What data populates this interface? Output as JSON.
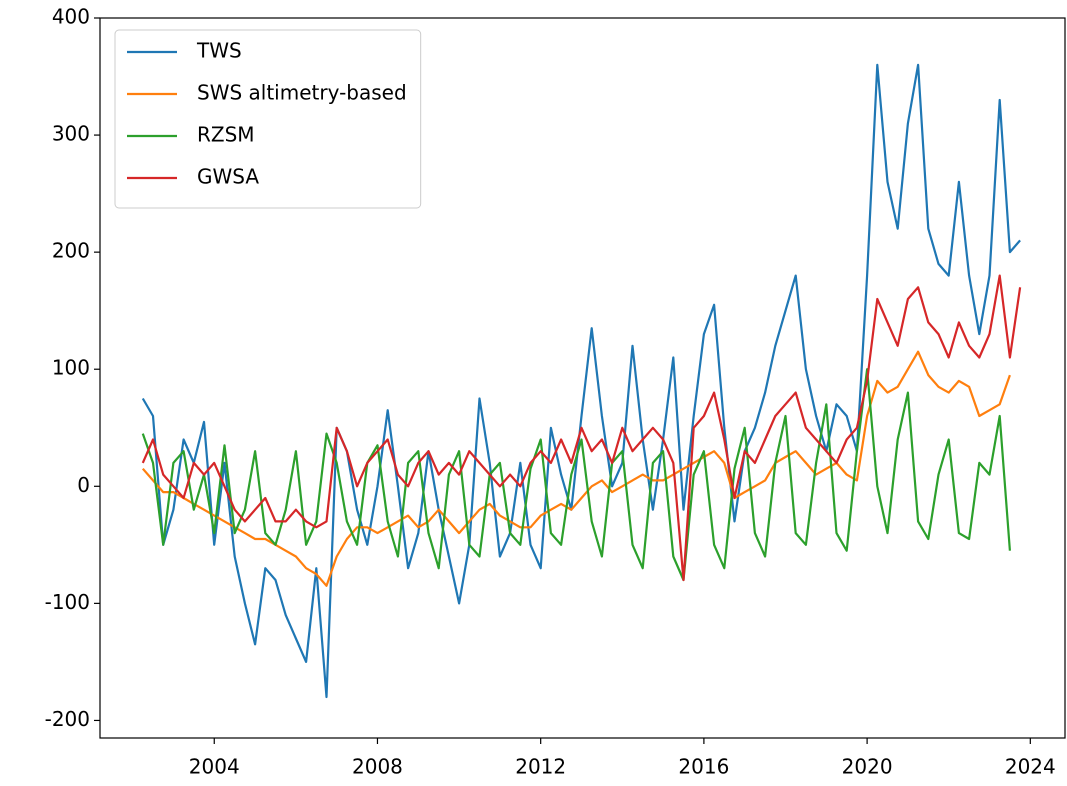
{
  "chart_data": {
    "type": "line",
    "x": [
      2002.25,
      2002.5,
      2002.75,
      2003,
      2003.25,
      2003.5,
      2003.75,
      2004,
      2004.25,
      2004.5,
      2004.75,
      2005,
      2005.25,
      2005.5,
      2005.75,
      2006,
      2006.25,
      2006.5,
      2006.75,
      2007,
      2007.25,
      2007.5,
      2007.75,
      2008,
      2008.25,
      2008.5,
      2008.75,
      2009,
      2009.25,
      2009.5,
      2009.75,
      2010,
      2010.25,
      2010.5,
      2010.75,
      2011,
      2011.25,
      2011.5,
      2011.75,
      2012,
      2012.25,
      2012.5,
      2012.75,
      2013,
      2013.25,
      2013.5,
      2013.75,
      2014,
      2014.25,
      2014.5,
      2014.75,
      2015,
      2015.25,
      2015.5,
      2015.75,
      2016,
      2016.25,
      2016.5,
      2016.75,
      2017,
      2017.25,
      2017.5,
      2017.75,
      2018,
      2018.25,
      2018.5,
      2018.75,
      2019,
      2019.25,
      2019.5,
      2019.75,
      2020,
      2020.25,
      2020.5,
      2020.75,
      2021,
      2021.25,
      2021.5,
      2021.75,
      2022,
      2022.25,
      2022.5,
      2022.75,
      2023,
      2023.25,
      2023.5,
      2023.75
    ],
    "series": [
      {
        "name": "TWS",
        "color": "#1f77b4",
        "values": [
          75,
          60,
          -50,
          -20,
          40,
          20,
          55,
          -50,
          20,
          -60,
          -100,
          -135,
          -70,
          -80,
          -110,
          -130,
          -150,
          -70,
          -180,
          50,
          30,
          -20,
          -50,
          0,
          65,
          0,
          -70,
          -40,
          30,
          -20,
          -60,
          -100,
          -50,
          75,
          20,
          -60,
          -40,
          20,
          -50,
          -70,
          50,
          10,
          -20,
          60,
          135,
          60,
          0,
          20,
          120,
          40,
          -20,
          40,
          110,
          -20,
          60,
          130,
          155,
          50,
          -30,
          30,
          50,
          80,
          120,
          150,
          180,
          100,
          60,
          30,
          70,
          60,
          30,
          180,
          360,
          260,
          220,
          310,
          360,
          220,
          190,
          180,
          260,
          180,
          130,
          180,
          330,
          200,
          210
        ]
      },
      {
        "name": "SWS altimetry-based",
        "color": "#ff7f0e",
        "values": [
          15,
          5,
          -5,
          -5,
          -10,
          -15,
          -20,
          -25,
          -30,
          -35,
          -40,
          -45,
          -45,
          -50,
          -55,
          -60,
          -70,
          -75,
          -85,
          -60,
          -45,
          -35,
          -35,
          -40,
          -35,
          -30,
          -25,
          -35,
          -30,
          -20,
          -30,
          -40,
          -30,
          -20,
          -15,
          -25,
          -30,
          -35,
          -35,
          -25,
          -20,
          -15,
          -20,
          -10,
          0,
          5,
          -5,
          0,
          5,
          10,
          5,
          5,
          10,
          15,
          20,
          25,
          30,
          20,
          -10,
          -5,
          0,
          5,
          20,
          25,
          30,
          20,
          10,
          15,
          20,
          10,
          5,
          60,
          90,
          80,
          85,
          100,
          115,
          95,
          85,
          80,
          90,
          85,
          60,
          65,
          70,
          95,
          null
        ]
      },
      {
        "name": "RZSM",
        "color": "#2ca02c",
        "values": [
          45,
          20,
          -50,
          20,
          30,
          -20,
          10,
          -40,
          35,
          -40,
          -20,
          30,
          -40,
          -50,
          -20,
          30,
          -50,
          -30,
          45,
          20,
          -30,
          -50,
          20,
          35,
          -30,
          -60,
          20,
          30,
          -40,
          -70,
          10,
          30,
          -50,
          -60,
          10,
          20,
          -40,
          -50,
          15,
          40,
          -40,
          -50,
          10,
          40,
          -30,
          -60,
          20,
          30,
          -50,
          -70,
          20,
          30,
          -60,
          -80,
          10,
          30,
          -50,
          -70,
          15,
          50,
          -40,
          -60,
          20,
          60,
          -40,
          -50,
          20,
          70,
          -40,
          -55,
          30,
          100,
          0,
          -40,
          40,
          80,
          -30,
          -45,
          10,
          40,
          -40,
          -45,
          20,
          10,
          60,
          -55,
          null
        ]
      },
      {
        "name": "GWSA",
        "color": "#d62728",
        "values": [
          20,
          40,
          10,
          0,
          -10,
          20,
          10,
          20,
          0,
          -20,
          -30,
          -20,
          -10,
          -30,
          -30,
          -20,
          -30,
          -35,
          -30,
          50,
          30,
          0,
          20,
          30,
          40,
          10,
          0,
          20,
          30,
          10,
          20,
          10,
          30,
          20,
          10,
          0,
          10,
          0,
          20,
          30,
          20,
          40,
          20,
          50,
          30,
          40,
          20,
          50,
          30,
          40,
          50,
          40,
          20,
          -80,
          50,
          60,
          80,
          40,
          -10,
          30,
          20,
          40,
          60,
          70,
          80,
          50,
          40,
          30,
          20,
          40,
          50,
          90,
          160,
          140,
          120,
          160,
          170,
          140,
          130,
          110,
          140,
          120,
          110,
          130,
          180,
          110,
          170
        ]
      }
    ],
    "xlim": [
      2001.2,
      2024.85
    ],
    "xticks": [
      2004,
      2008,
      2012,
      2016,
      2020,
      2024
    ],
    "ylim": [
      -215,
      400
    ],
    "yticks": [
      -200,
      -100,
      0,
      100,
      200,
      300,
      400
    ],
    "legend": "upper left",
    "grid": false
  }
}
